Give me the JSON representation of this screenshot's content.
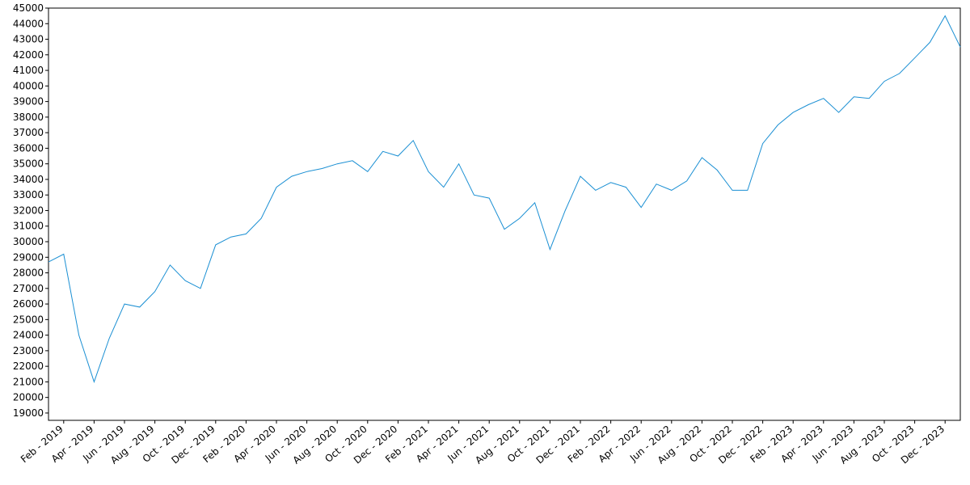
{
  "chart_data": {
    "type": "line",
    "x": [
      "2019-01",
      "2019-02",
      "2019-03",
      "2019-04",
      "2019-05",
      "2019-06",
      "2019-07",
      "2019-08",
      "2019-09",
      "2019-10",
      "2019-11",
      "2019-12",
      "2020-01",
      "2020-02",
      "2020-03",
      "2020-04",
      "2020-05",
      "2020-06",
      "2020-07",
      "2020-08",
      "2020-09",
      "2020-10",
      "2020-11",
      "2020-12",
      "2021-01",
      "2021-02",
      "2021-03",
      "2021-04",
      "2021-05",
      "2021-06",
      "2021-07",
      "2021-08",
      "2021-09",
      "2021-10",
      "2021-11",
      "2021-12",
      "2022-01",
      "2022-02",
      "2022-03",
      "2022-04",
      "2022-05",
      "2022-06",
      "2022-07",
      "2022-08",
      "2022-09",
      "2022-10",
      "2022-11",
      "2022-12",
      "2023-01",
      "2023-02",
      "2023-03",
      "2023-04",
      "2023-05",
      "2023-06",
      "2023-07",
      "2023-08",
      "2023-09",
      "2023-10",
      "2023-11",
      "2023-12",
      "2024-01"
    ],
    "series": [
      {
        "color": "#1a8fd3",
        "values": [
          28700,
          29200,
          24000,
          21000,
          23800,
          26000,
          25800,
          26800,
          28500,
          27500,
          27000,
          29800,
          30300,
          30500,
          31500,
          33500,
          34200,
          34500,
          34700,
          35000,
          35200,
          34500,
          35800,
          35500,
          36500,
          34500,
          33500,
          35000,
          33000,
          32800,
          30800,
          31500,
          32500,
          29500,
          32000,
          34200,
          33300,
          33800,
          33500,
          32200,
          33700,
          33300,
          33900,
          35400,
          34600,
          33300,
          33300,
          36300,
          37500,
          38300,
          38800,
          39200,
          38300,
          39300,
          39200,
          40300,
          40800,
          41800,
          42800,
          44500,
          42500
        ]
      }
    ],
    "xlim": [
      "2019-01",
      "2024-01"
    ],
    "xticks": [
      {
        "value": "2019-02",
        "label": "Feb - 2019"
      },
      {
        "value": "2019-04",
        "label": "Apr - 2019"
      },
      {
        "value": "2019-06",
        "label": "Jun - 2019"
      },
      {
        "value": "2019-08",
        "label": "Aug - 2019"
      },
      {
        "value": "2019-10",
        "label": "Oct - 2019"
      },
      {
        "value": "2019-12",
        "label": "Dec - 2019"
      },
      {
        "value": "2020-02",
        "label": "Feb - 2020"
      },
      {
        "value": "2020-04",
        "label": "Apr - 2020"
      },
      {
        "value": "2020-06",
        "label": "Jun - 2020"
      },
      {
        "value": "2020-08",
        "label": "Aug - 2020"
      },
      {
        "value": "2020-10",
        "label": "Oct - 2020"
      },
      {
        "value": "2020-12",
        "label": "Dec - 2020"
      },
      {
        "value": "2021-02",
        "label": "Feb - 2021"
      },
      {
        "value": "2021-04",
        "label": "Apr - 2021"
      },
      {
        "value": "2021-06",
        "label": "Jun - 2021"
      },
      {
        "value": "2021-08",
        "label": "Aug - 2021"
      },
      {
        "value": "2021-10",
        "label": "Oct - 2021"
      },
      {
        "value": "2021-12",
        "label": "Dec - 2021"
      },
      {
        "value": "2022-02",
        "label": "Feb - 2022"
      },
      {
        "value": "2022-04",
        "label": "Apr - 2022"
      },
      {
        "value": "2022-06",
        "label": "Jun - 2022"
      },
      {
        "value": "2022-08",
        "label": "Aug - 2022"
      },
      {
        "value": "2022-10",
        "label": "Oct - 2022"
      },
      {
        "value": "2022-12",
        "label": "Dec - 2022"
      },
      {
        "value": "2023-02",
        "label": "Feb - 2023"
      },
      {
        "value": "2023-04",
        "label": "Apr - 2023"
      },
      {
        "value": "2023-06",
        "label": "Jun - 2023"
      },
      {
        "value": "2023-08",
        "label": "Aug - 2023"
      },
      {
        "value": "2023-10",
        "label": "Oct - 2023"
      },
      {
        "value": "2023-12",
        "label": "Dec - 2023"
      }
    ],
    "ylim": [
      18530,
      45000
    ],
    "yticks": [
      19000,
      20000,
      21000,
      22000,
      23000,
      24000,
      25000,
      26000,
      27000,
      28000,
      29000,
      30000,
      31000,
      32000,
      33000,
      34000,
      35000,
      36000,
      37000,
      38000,
      39000,
      40000,
      41000,
      42000,
      43000,
      44000,
      45000
    ]
  }
}
